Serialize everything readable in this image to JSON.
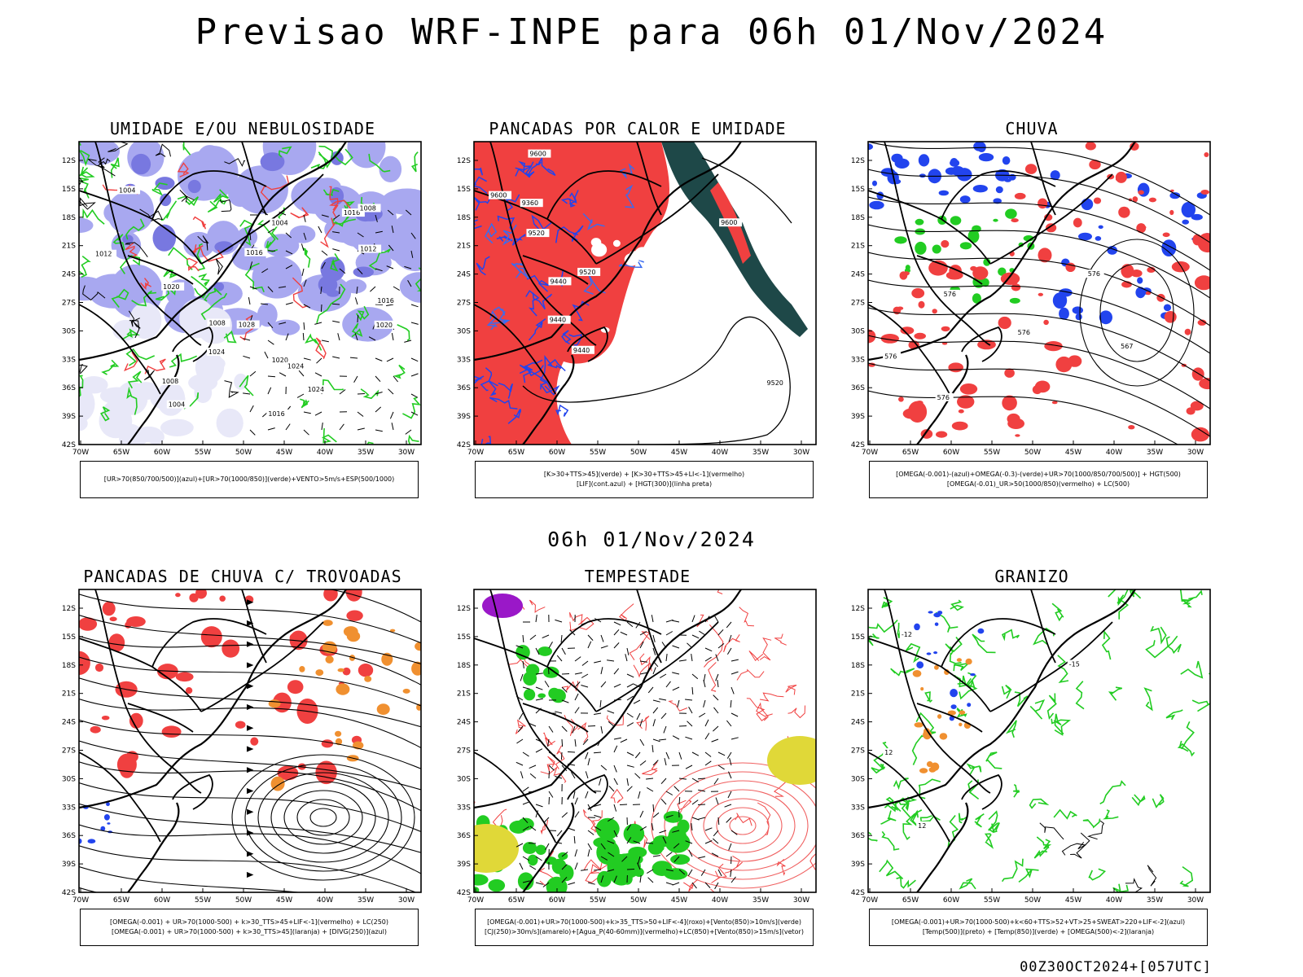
{
  "title": "Previsao WRF-INPE  para 06h 01/Nov/2024",
  "mid_title": "06h 01/Nov/2024",
  "footer": "00Z30OCT2024+[057UTC]",
  "axes": {
    "lat_labels": [
      "12S",
      "15S",
      "18S",
      "21S",
      "24S",
      "27S",
      "30S",
      "33S",
      "36S",
      "39S",
      "42S"
    ],
    "lon_labels": [
      "70W",
      "65W",
      "60W",
      "55W",
      "50W",
      "45W",
      "40W",
      "35W",
      "30W"
    ]
  },
  "panels": [
    {
      "title": "UMIDADE E/OU NEBULOSIDADE",
      "legend": [
        "[UR>70(850/700/500)](azul)+[UR>70(1000/850)](verde)+VENTO>5m/s+ESP(500/1000)"
      ],
      "contour_labels": [
        "1012",
        "1004",
        "1016",
        "1016",
        "1008",
        "1012",
        "1020",
        "1016",
        "1004",
        "1008",
        "1016",
        "1020",
        "1020",
        "1024",
        "1028",
        "1024",
        "1024",
        "1004",
        "1008"
      ]
    },
    {
      "title": "PANCADAS POR CALOR E UMIDADE",
      "legend": [
        "[K>30+TTS>45](verde) + [K>30+TTS>45+LI<-1](vermelho)",
        "[LIF](cont.azul) + [HGT(300)](linha preta)"
      ],
      "contour_labels": [
        "9600",
        "9600",
        "9600",
        "9520",
        "9520",
        "9440",
        "9520",
        "9440",
        "9360",
        "9440"
      ]
    },
    {
      "title": "CHUVA",
      "legend": [
        "[OMEGA(-0.001)-(azul)+OMEGA(-0.3)-(verde)+UR>70(1000/850/700/500)] + HGT(500)",
        "[OMEGA(-0.01)_UR>50(1000/850)(vermelho) + LC(500)"
      ],
      "contour_labels": [
        "576",
        "576",
        "576",
        "576",
        "576",
        "567"
      ]
    },
    {
      "title": "PANCADAS DE CHUVA C/ TROVOADAS",
      "legend": [
        "[OMEGA(-0.001) + UR>70(1000-500) + k>30_TTS>45+LIF<-1](vermelho) + LC(250)",
        "[OMEGA(-0.001) + UR>70(1000-500) + k>30_TTS>45](laranja) + [DIVG(250)](azul)"
      ],
      "contour_labels": []
    },
    {
      "title": "TEMPESTADE",
      "legend": [
        "[OMEGA(-0.001)+UR>70(1000-500)+k>35_TTS>50+LIF<-4](roxo)+[Vento(850)>10m/s](verde)",
        "[CJ(250)>30m/s](amarelo)+[Agua_P(40-60mm)](vermelho)+LC(850)+[Vento(850)>15m/s](vetor)"
      ],
      "contour_labels": []
    },
    {
      "title": "GRANIZO",
      "legend": [
        "[OMEGA(-0.001)+UR>70(1000-500)+k<60+TTS>52+VT>25+SWEAT>220+LIF<-2](azul)",
        "[Temp(500)](preto) + [Temp(850)](verde) + [OMEGA(500)<-2](laranja)"
      ],
      "contour_labels": [
        "12",
        "12",
        "-15",
        "-12"
      ]
    }
  ],
  "colors": {
    "red": "#f04040",
    "green": "#22cc22",
    "blue": "#2244ee",
    "lavender": "#a8a8f0",
    "orange": "#f09030",
    "yellow": "#e0d838",
    "purple": "#9a18c8",
    "darkteal": "#1e4848"
  }
}
